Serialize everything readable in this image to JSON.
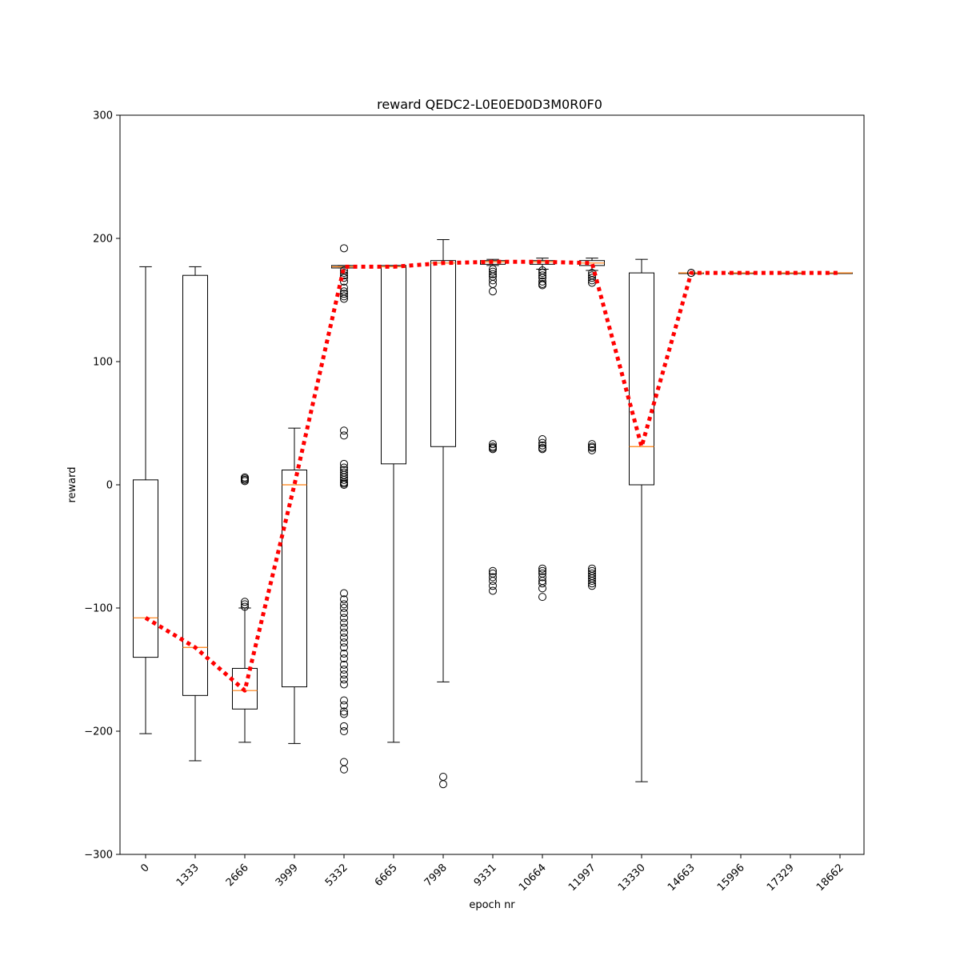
{
  "chart_data": {
    "type": "box",
    "title": "reward QEDC2-L0E0ED0D3M0R0F0",
    "xlabel": "epoch nr",
    "ylabel": "reward",
    "ylim": [
      -300,
      300
    ],
    "yticks": [
      -300,
      -200,
      -100,
      0,
      100,
      200,
      300
    ],
    "grid": false,
    "categories": [
      "0",
      "1333",
      "2666",
      "3999",
      "5332",
      "6665",
      "7998",
      "9331",
      "10664",
      "11997",
      "13330",
      "14663",
      "15996",
      "17329",
      "18662"
    ],
    "boxes": [
      {
        "whislo": -202,
        "q1": -140,
        "med": -108,
        "q3": 4,
        "whishi": 177,
        "fliers": []
      },
      {
        "whislo": -224,
        "q1": -171,
        "med": -132,
        "q3": 170,
        "whishi": 177,
        "fliers": []
      },
      {
        "whislo": -209,
        "q1": -182,
        "med": -167,
        "q3": -149,
        "whishi": -100,
        "fliers": [
          3,
          4,
          5,
          6,
          -95,
          -97,
          -99
        ]
      },
      {
        "whislo": -210,
        "q1": -164,
        "med": 0,
        "q3": 12,
        "whishi": 46,
        "fliers": []
      },
      {
        "whislo": 176,
        "q1": 176,
        "med": 177,
        "q3": 178,
        "whishi": 178,
        "fliers": [
          192,
          174,
          172,
          170,
          168,
          165,
          160,
          157,
          155,
          153,
          151,
          44,
          40,
          17,
          14,
          12,
          10,
          8,
          6,
          4,
          2,
          1,
          0,
          -88,
          -93,
          -97,
          -100,
          -104,
          -108,
          -112,
          -116,
          -120,
          -124,
          -128,
          -132,
          -137,
          -141,
          -146,
          -150,
          -154,
          -158,
          -162,
          -175,
          -179,
          -184,
          -186,
          -196,
          -200,
          -225,
          -231
        ]
      },
      {
        "whislo": -209,
        "q1": 17,
        "med": 177,
        "q3": 178,
        "whishi": 178,
        "fliers": []
      },
      {
        "whislo": -160,
        "q1": 31,
        "med": 180,
        "q3": 182,
        "whishi": 199,
        "fliers": [
          -237,
          -243
        ]
      },
      {
        "whislo": 178,
        "q1": 179,
        "med": 181,
        "q3": 182,
        "whishi": 183,
        "fliers": [
          175,
          173,
          171,
          169,
          166,
          163,
          157,
          33,
          31,
          30,
          29,
          -70,
          -72,
          -75,
          -78,
          -82,
          -86
        ]
      },
      {
        "whislo": 175,
        "q1": 179,
        "med": 181,
        "q3": 182,
        "whishi": 184,
        "fliers": [
          174,
          172,
          170,
          168,
          165,
          163,
          162,
          37,
          34,
          32,
          30,
          29,
          -68,
          -70,
          -72,
          -75,
          -78,
          -80,
          -84,
          -91
        ]
      },
      {
        "whislo": 174,
        "q1": 178,
        "med": 180,
        "q3": 182,
        "whishi": 184,
        "fliers": [
          172,
          170,
          168,
          166,
          164,
          33,
          31,
          30,
          28,
          -68,
          -70,
          -72,
          -74,
          -76,
          -78,
          -80,
          -82
        ]
      },
      {
        "whislo": -241,
        "q1": 0,
        "med": 31,
        "q3": 172,
        "whishi": 183,
        "fliers": []
      },
      {
        "whislo": 172,
        "q1": 172,
        "med": 172,
        "q3": 172,
        "whishi": 172,
        "fliers": [
          172,
          172
        ]
      },
      {
        "whislo": 172,
        "q1": 172,
        "med": 172,
        "q3": 172,
        "whishi": 172,
        "fliers": []
      },
      {
        "whislo": 172,
        "q1": 172,
        "med": 172,
        "q3": 172,
        "whishi": 172,
        "fliers": []
      },
      {
        "whislo": 172,
        "q1": 172,
        "med": 172,
        "q3": 172,
        "whishi": 172,
        "fliers": []
      }
    ],
    "trend_line": {
      "style": "dotted",
      "color": "#ff0000",
      "values": [
        -108,
        -132,
        -167,
        0,
        177,
        177,
        180,
        181,
        181,
        180,
        31,
        172,
        172,
        172,
        172
      ]
    },
    "colors": {
      "box": "#000000",
      "median": "#ff7f0e",
      "trend": "#ff0000"
    }
  }
}
